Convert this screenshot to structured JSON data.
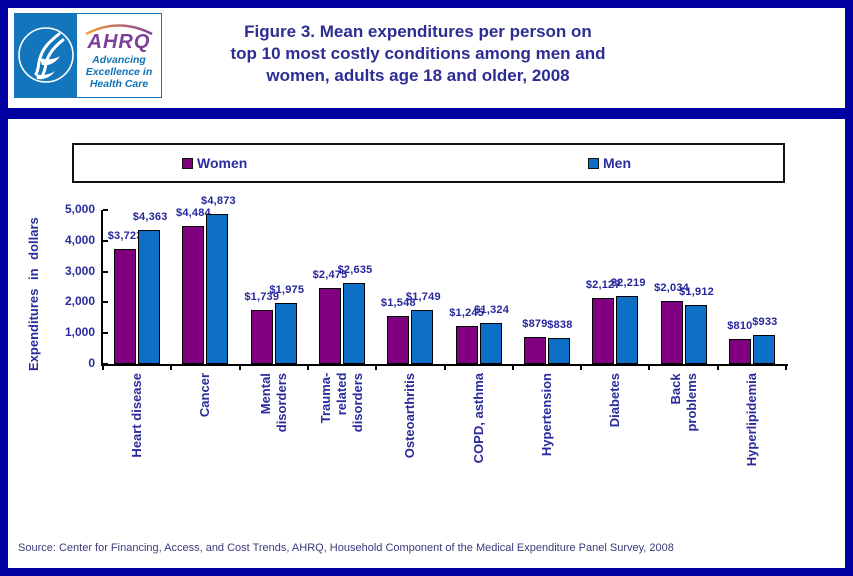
{
  "header": {
    "logo": {
      "agency": "AHRQ",
      "tagline_lines": [
        "Advancing",
        "Excellence in",
        "Health Care"
      ]
    },
    "title_lines": [
      "Figure 3. Mean expenditures per person on",
      "top 10 most costly conditions among men and",
      "women, adults age 18 and older, 2008"
    ]
  },
  "legend": [
    {
      "label": "Women",
      "color": "#800080"
    },
    {
      "label": "Men",
      "color": "#0D6FC5"
    }
  ],
  "chart_data": {
    "type": "bar",
    "title": "Figure 3. Mean expenditures per person on top 10 most costly conditions among men and women, adults age 18 and older, 2008",
    "ylabel": "Expenditures in dollars",
    "ylim": [
      0,
      5000
    ],
    "yticks": [
      0,
      1000,
      2000,
      3000,
      4000,
      5000
    ],
    "ytick_labels": [
      "0",
      "1,000",
      "2,000",
      "3,000",
      "4,000",
      "5,000"
    ],
    "grid": false,
    "legend_position": "top",
    "categories": [
      [
        "Heart disease"
      ],
      [
        "Cancer"
      ],
      [
        "Mental",
        "disorders"
      ],
      [
        "Trauma-",
        "related",
        "disorders"
      ],
      [
        "Osteoarthritis"
      ],
      [
        "COPD, asthma"
      ],
      [
        "Hypertension"
      ],
      [
        "Diabetes"
      ],
      [
        "Back",
        "problems"
      ],
      [
        "Hyperlipidemia"
      ]
    ],
    "series": [
      {
        "name": "Women",
        "color": "#800080",
        "values": [
          3723,
          4484,
          1739,
          2475,
          1548,
          1245,
          879,
          2127,
          2034,
          810
        ],
        "labels": [
          "$3,723",
          "$4,484",
          "$1,739",
          "$2,475",
          "$1,548",
          "$1,245",
          "$879",
          "$2,127",
          "$2,034",
          "$810"
        ]
      },
      {
        "name": "Men",
        "color": "#0D6FC5",
        "values": [
          4363,
          4873,
          1975,
          2635,
          1749,
          1324,
          838,
          2219,
          1912,
          933
        ],
        "labels": [
          "$4,363",
          "$4,873",
          "$1,975",
          "$2,635",
          "$1,749",
          "$1,324",
          "$838",
          "$2,219",
          "$1,912",
          "$933"
        ]
      }
    ]
  },
  "footer": {
    "source": "Source: Center for Financing, Access, and Cost Trends, AHRQ, Household Component of the Medical Expenditure Panel Survey, 2008"
  }
}
